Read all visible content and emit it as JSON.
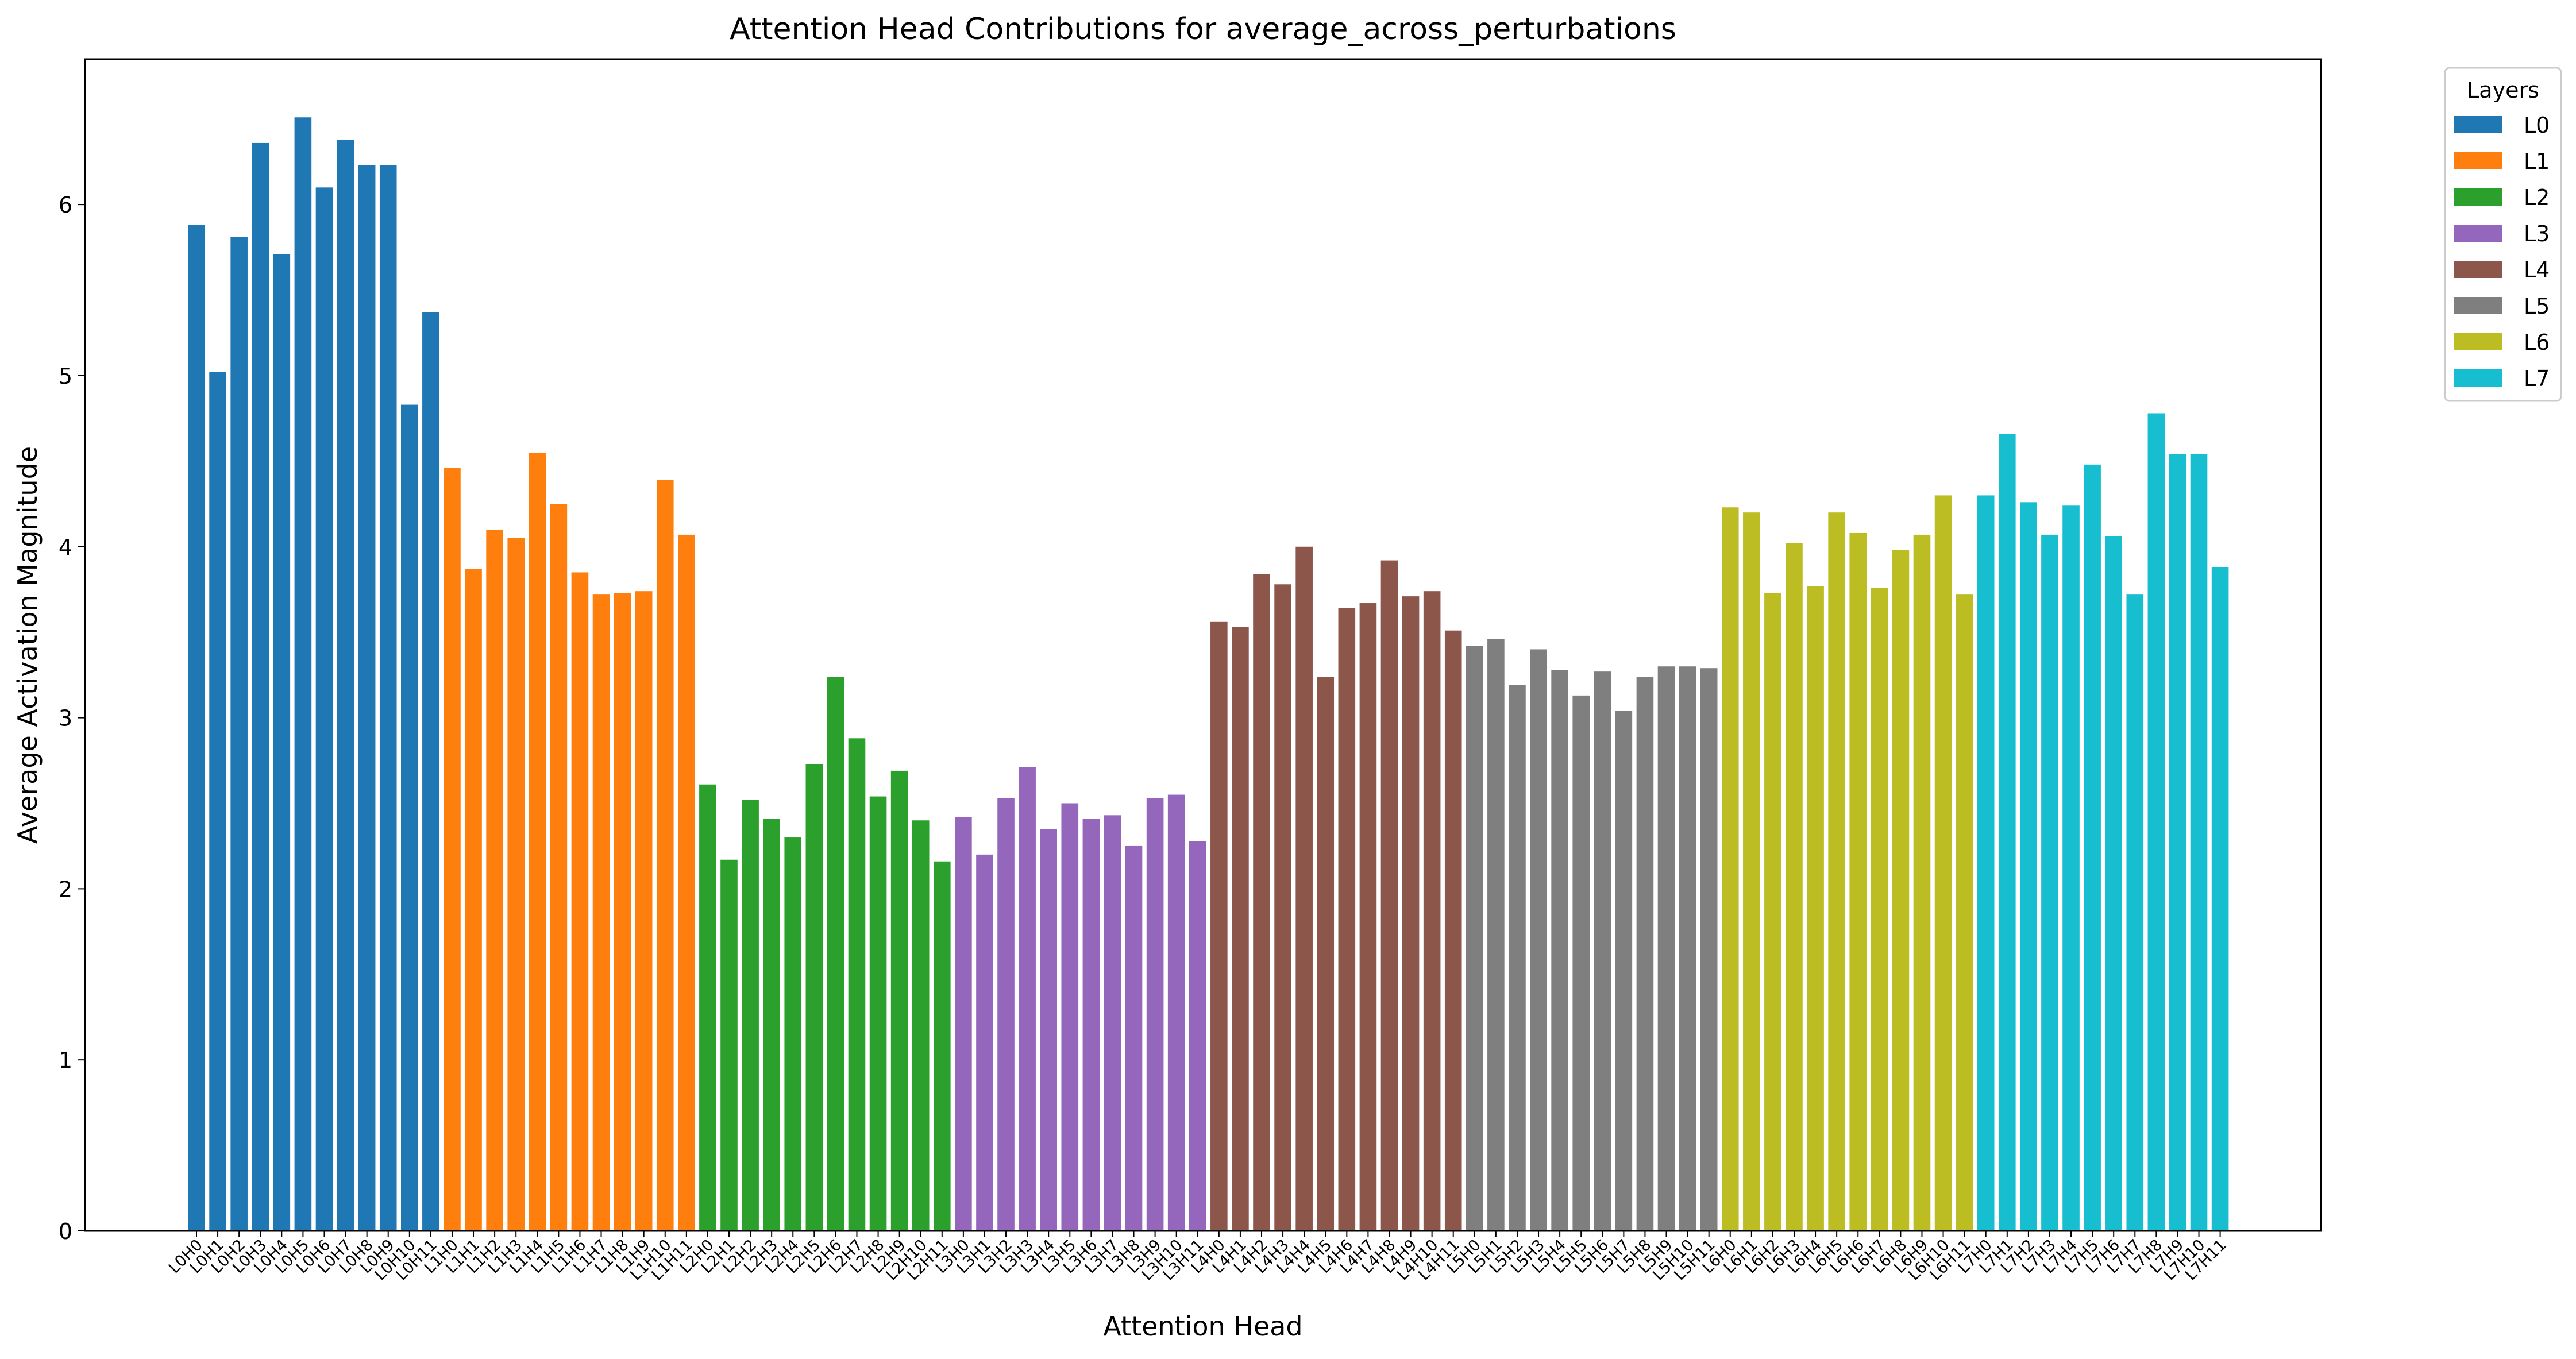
{
  "chart_data": {
    "type": "bar",
    "title": "Attention Head Contributions for average_across_perturbations",
    "xlabel": "Attention Head",
    "ylabel": "Average Activation Magnitude",
    "ylim": [
      0,
      6.85
    ],
    "yticks": [
      0,
      1,
      2,
      3,
      4,
      5,
      6
    ],
    "grid": false,
    "legend": {
      "title": "Layers",
      "placement": "outside-top-right"
    },
    "series": [
      {
        "name": "L0",
        "color": "#1f77b4",
        "categories": [
          "L0H0",
          "L0H1",
          "L0H2",
          "L0H3",
          "L0H4",
          "L0H5",
          "L0H6",
          "L0H7",
          "L0H8",
          "L0H9",
          "L0H10",
          "L0H11"
        ],
        "values": [
          5.88,
          5.02,
          5.81,
          6.36,
          5.71,
          6.51,
          6.1,
          6.38,
          6.23,
          6.23,
          4.83,
          5.37
        ]
      },
      {
        "name": "L1",
        "color": "#ff7f0e",
        "categories": [
          "L1H0",
          "L1H1",
          "L1H2",
          "L1H3",
          "L1H4",
          "L1H5",
          "L1H6",
          "L1H7",
          "L1H8",
          "L1H9",
          "L1H10",
          "L1H11"
        ],
        "values": [
          4.46,
          3.87,
          4.1,
          4.05,
          4.55,
          4.25,
          3.85,
          3.72,
          3.73,
          3.74,
          4.39,
          4.07
        ]
      },
      {
        "name": "L2",
        "color": "#2ca02c",
        "categories": [
          "L2H0",
          "L2H1",
          "L2H2",
          "L2H3",
          "L2H4",
          "L2H5",
          "L2H6",
          "L2H7",
          "L2H8",
          "L2H9",
          "L2H10",
          "L2H11"
        ],
        "values": [
          2.61,
          2.17,
          2.52,
          2.41,
          2.3,
          2.73,
          3.24,
          2.88,
          2.54,
          2.69,
          2.4,
          2.16
        ]
      },
      {
        "name": "L3",
        "color": "#9467bd",
        "categories": [
          "L3H0",
          "L3H1",
          "L3H2",
          "L3H3",
          "L3H4",
          "L3H5",
          "L3H6",
          "L3H7",
          "L3H8",
          "L3H9",
          "L3H10",
          "L3H11"
        ],
        "values": [
          2.42,
          2.2,
          2.53,
          2.71,
          2.35,
          2.5,
          2.41,
          2.43,
          2.25,
          2.53,
          2.55,
          2.28
        ]
      },
      {
        "name": "L4",
        "color": "#8c564b",
        "categories": [
          "L4H0",
          "L4H1",
          "L4H2",
          "L4H3",
          "L4H4",
          "L4H5",
          "L4H6",
          "L4H7",
          "L4H8",
          "L4H9",
          "L4H10",
          "L4H11"
        ],
        "values": [
          3.56,
          3.53,
          3.84,
          3.78,
          4.0,
          3.24,
          3.64,
          3.67,
          3.92,
          3.71,
          3.74,
          3.51
        ]
      },
      {
        "name": "L5",
        "color": "#7f7f7f",
        "categories": [
          "L5H0",
          "L5H1",
          "L5H2",
          "L5H3",
          "L5H4",
          "L5H5",
          "L5H6",
          "L5H7",
          "L5H8",
          "L5H9",
          "L5H10",
          "L5H11"
        ],
        "values": [
          3.42,
          3.46,
          3.19,
          3.4,
          3.28,
          3.13,
          3.27,
          3.04,
          3.24,
          3.3,
          3.3,
          3.29
        ]
      },
      {
        "name": "L6",
        "color": "#bcbd22",
        "categories": [
          "L6H0",
          "L6H1",
          "L6H2",
          "L6H3",
          "L6H4",
          "L6H5",
          "L6H6",
          "L6H7",
          "L6H8",
          "L6H9",
          "L6H10",
          "L6H11"
        ],
        "values": [
          4.23,
          4.2,
          3.73,
          4.02,
          3.77,
          4.2,
          4.08,
          3.76,
          3.98,
          4.07,
          4.3,
          3.72
        ]
      },
      {
        "name": "L7",
        "color": "#17becf",
        "categories": [
          "L7H0",
          "L7H1",
          "L7H2",
          "L7H3",
          "L7H4",
          "L7H5",
          "L7H6",
          "L7H7",
          "L7H8",
          "L7H9",
          "L7H10",
          "L7H11"
        ],
        "values": [
          4.3,
          4.66,
          4.26,
          4.07,
          4.24,
          4.48,
          4.06,
          3.72,
          4.78,
          4.54,
          4.54,
          3.88
        ]
      }
    ]
  }
}
